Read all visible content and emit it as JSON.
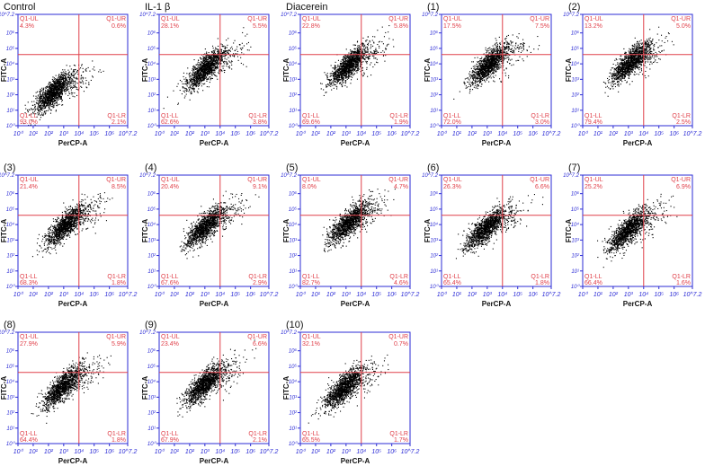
{
  "axes": {
    "xlabel": "PerCP-A",
    "ylabel": "FITC-A",
    "x_ticks": [
      "10⁰",
      "10¹",
      "10²",
      "10³",
      "10⁴",
      "10⁵",
      "10⁶",
      "10^7.2"
    ],
    "y_ticks": [
      "10⁰",
      "10¹",
      "10²",
      "10³",
      "10⁴",
      "10⁵",
      "10⁶",
      "10^7.2"
    ]
  },
  "quadrant_names": {
    "ul": "Q1-UL",
    "ur": "Q1-UR",
    "ll": "Q1-LL",
    "lr": "Q1-LR"
  },
  "colors": {
    "frame": "#2b2bd6",
    "gate": "#e0404a",
    "label": "#e0404a",
    "dot": "#000000"
  },
  "chart_data": [
    {
      "type": "scatter",
      "title": "Control",
      "xlabel": "PerCP-A",
      "ylabel": "FITC-A",
      "gate_log": [
        4.0,
        4.6
      ],
      "center_log": [
        2.3,
        2.2
      ],
      "percentages": {
        "ul": "4.3%",
        "ur": "0.6%",
        "ll": "93.0%",
        "lr": "2.1%"
      }
    },
    {
      "type": "scatter",
      "title": "IL-1 β",
      "xlabel": "PerCP-A",
      "ylabel": "FITC-A",
      "gate_log": [
        4.0,
        4.6
      ],
      "center_log": [
        3.0,
        3.7
      ],
      "percentages": {
        "ul": "28.1%",
        "ur": "5.5%",
        "ll": "62.6%",
        "lr": "3.8%"
      }
    },
    {
      "type": "scatter",
      "title": "Diacerein",
      "xlabel": "PerCP-A",
      "ylabel": "FITC-A",
      "gate_log": [
        4.0,
        4.6
      ],
      "center_log": [
        3.1,
        3.9
      ],
      "percentages": {
        "ul": "22.8%",
        "ur": "5.8%",
        "ll": "69.6%",
        "lr": "1.9%"
      }
    },
    {
      "type": "scatter",
      "title": "(1)",
      "xlabel": "PerCP-A",
      "ylabel": "FITC-A",
      "gate_log": [
        4.0,
        4.6
      ],
      "center_log": [
        3.1,
        4.0
      ],
      "percentages": {
        "ul": "17.5%",
        "ur": "7.5%",
        "ll": "72.0%",
        "lr": "3.0%"
      }
    },
    {
      "type": "scatter",
      "title": "(2)",
      "xlabel": "PerCP-A",
      "ylabel": "FITC-A",
      "gate_log": [
        4.0,
        4.6
      ],
      "center_log": [
        3.1,
        4.1
      ],
      "percentages": {
        "ul": "13.2%",
        "ur": "5.0%",
        "ll": "79.4%",
        "lr": "2.5%"
      }
    },
    {
      "type": "scatter",
      "title": "(3)",
      "xlabel": "PerCP-A",
      "ylabel": "FITC-A",
      "gate_log": [
        4.0,
        4.6
      ],
      "center_log": [
        3.1,
        4.0
      ],
      "percentages": {
        "ul": "21.4%",
        "ur": "8.5%",
        "ll": "68.3%",
        "lr": "1.8%"
      }
    },
    {
      "type": "scatter",
      "title": "(4)",
      "xlabel": "PerCP-A",
      "ylabel": "FITC-A",
      "gate_log": [
        4.0,
        4.6
      ],
      "center_log": [
        3.0,
        3.9
      ],
      "percentages": {
        "ul": "20.4%",
        "ur": "9.1%",
        "ll": "67.6%",
        "lr": "2.9%"
      }
    },
    {
      "type": "scatter",
      "title": "(5)",
      "xlabel": "PerCP-A",
      "ylabel": "FITC-A",
      "gate_log": [
        4.0,
        4.6
      ],
      "center_log": [
        3.1,
        4.1
      ],
      "percentages": {
        "ul": "8.0%",
        "ur": "4.7%",
        "ll": "82.7%",
        "lr": "4.6%"
      }
    },
    {
      "type": "scatter",
      "title": "(6)",
      "xlabel": "PerCP-A",
      "ylabel": "FITC-A",
      "gate_log": [
        4.0,
        4.6
      ],
      "center_log": [
        2.9,
        3.8
      ],
      "percentages": {
        "ul": "26.3%",
        "ur": "6.6%",
        "ll": "65.4%",
        "lr": "1.8%"
      }
    },
    {
      "type": "scatter",
      "title": "(7)",
      "xlabel": "PerCP-A",
      "ylabel": "FITC-A",
      "gate_log": [
        4.0,
        4.6
      ],
      "center_log": [
        3.0,
        3.7
      ],
      "percentages": {
        "ul": "25.2%",
        "ur": "6.9%",
        "ll": "66.4%",
        "lr": "1.6%"
      }
    },
    {
      "type": "scatter",
      "title": "(8)",
      "xlabel": "PerCP-A",
      "ylabel": "FITC-A",
      "gate_log": [
        4.0,
        4.6
      ],
      "center_log": [
        2.9,
        3.7
      ],
      "percentages": {
        "ul": "27.9%",
        "ur": "5.9%",
        "ll": "64.4%",
        "lr": "1.8%"
      }
    },
    {
      "type": "scatter",
      "title": "(9)",
      "xlabel": "PerCP-A",
      "ylabel": "FITC-A",
      "gate_log": [
        4.0,
        4.6
      ],
      "center_log": [
        3.0,
        3.9
      ],
      "percentages": {
        "ul": "23.4%",
        "ur": "6.6%",
        "ll": "67.9%",
        "lr": "2.1%"
      }
    },
    {
      "type": "scatter",
      "title": "(10)",
      "xlabel": "PerCP-A",
      "ylabel": "FITC-A",
      "gate_log": [
        4.0,
        4.6
      ],
      "center_log": [
        2.8,
        3.6
      ],
      "percentages": {
        "ul": "32.1%",
        "ur": "0.7%",
        "ll": "65.5%",
        "lr": "1.7%"
      }
    }
  ]
}
